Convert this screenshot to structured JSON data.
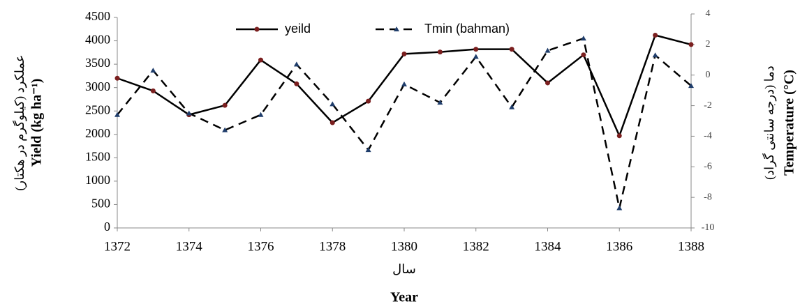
{
  "chart_data": {
    "type": "line",
    "xlabel": "Year",
    "xlabel_fa": "سال",
    "ylabel": "Yield (kg ha⁻¹)",
    "ylabel_fa": "عملکرد (کیلوگرم در هکتار)",
    "y2label": "Temperature (°C)",
    "y2label_fa": "دما (درجه سانتی گراد)",
    "x": [
      1372,
      1373,
      1374,
      1375,
      1376,
      1377,
      1378,
      1379,
      1380,
      1381,
      1382,
      1383,
      1384,
      1385,
      1386,
      1387,
      1388
    ],
    "xlim": [
      1372,
      1388
    ],
    "xticks": [
      1372,
      1374,
      1376,
      1378,
      1380,
      1382,
      1384,
      1386,
      1388
    ],
    "ylim": [
      0,
      4500
    ],
    "yticks": [
      0,
      500,
      1000,
      1500,
      2000,
      2500,
      3000,
      3500,
      4000,
      4500
    ],
    "y2lim": [
      -10,
      4
    ],
    "y2ticks": [
      -10,
      -8,
      -6,
      -4,
      -2,
      0,
      2,
      4
    ],
    "legend": "top",
    "grid": false,
    "series": [
      {
        "name": "yeild",
        "color": "#000000",
        "marker_color": "#7b1f1f",
        "marker": "circle",
        "dash": false,
        "values": [
          3200,
          2930,
          2420,
          2620,
          3590,
          3080,
          2250,
          2710,
          3720,
          3760,
          3820,
          3820,
          3100,
          3700,
          1970,
          4120,
          3920
        ]
      },
      {
        "name": "Tmin (bahman)",
        "color": "#000000",
        "marker_color": "#1f3d6b",
        "marker": "triangle",
        "dash": true,
        "axis": "y2",
        "values": [
          -2.6,
          0.3,
          -2.5,
          -3.6,
          -2.6,
          0.7,
          -1.9,
          -4.9,
          -0.6,
          -1.8,
          1.2,
          -2.1,
          1.6,
          2.4,
          -8.7,
          1.3,
          -0.7
        ]
      }
    ]
  }
}
